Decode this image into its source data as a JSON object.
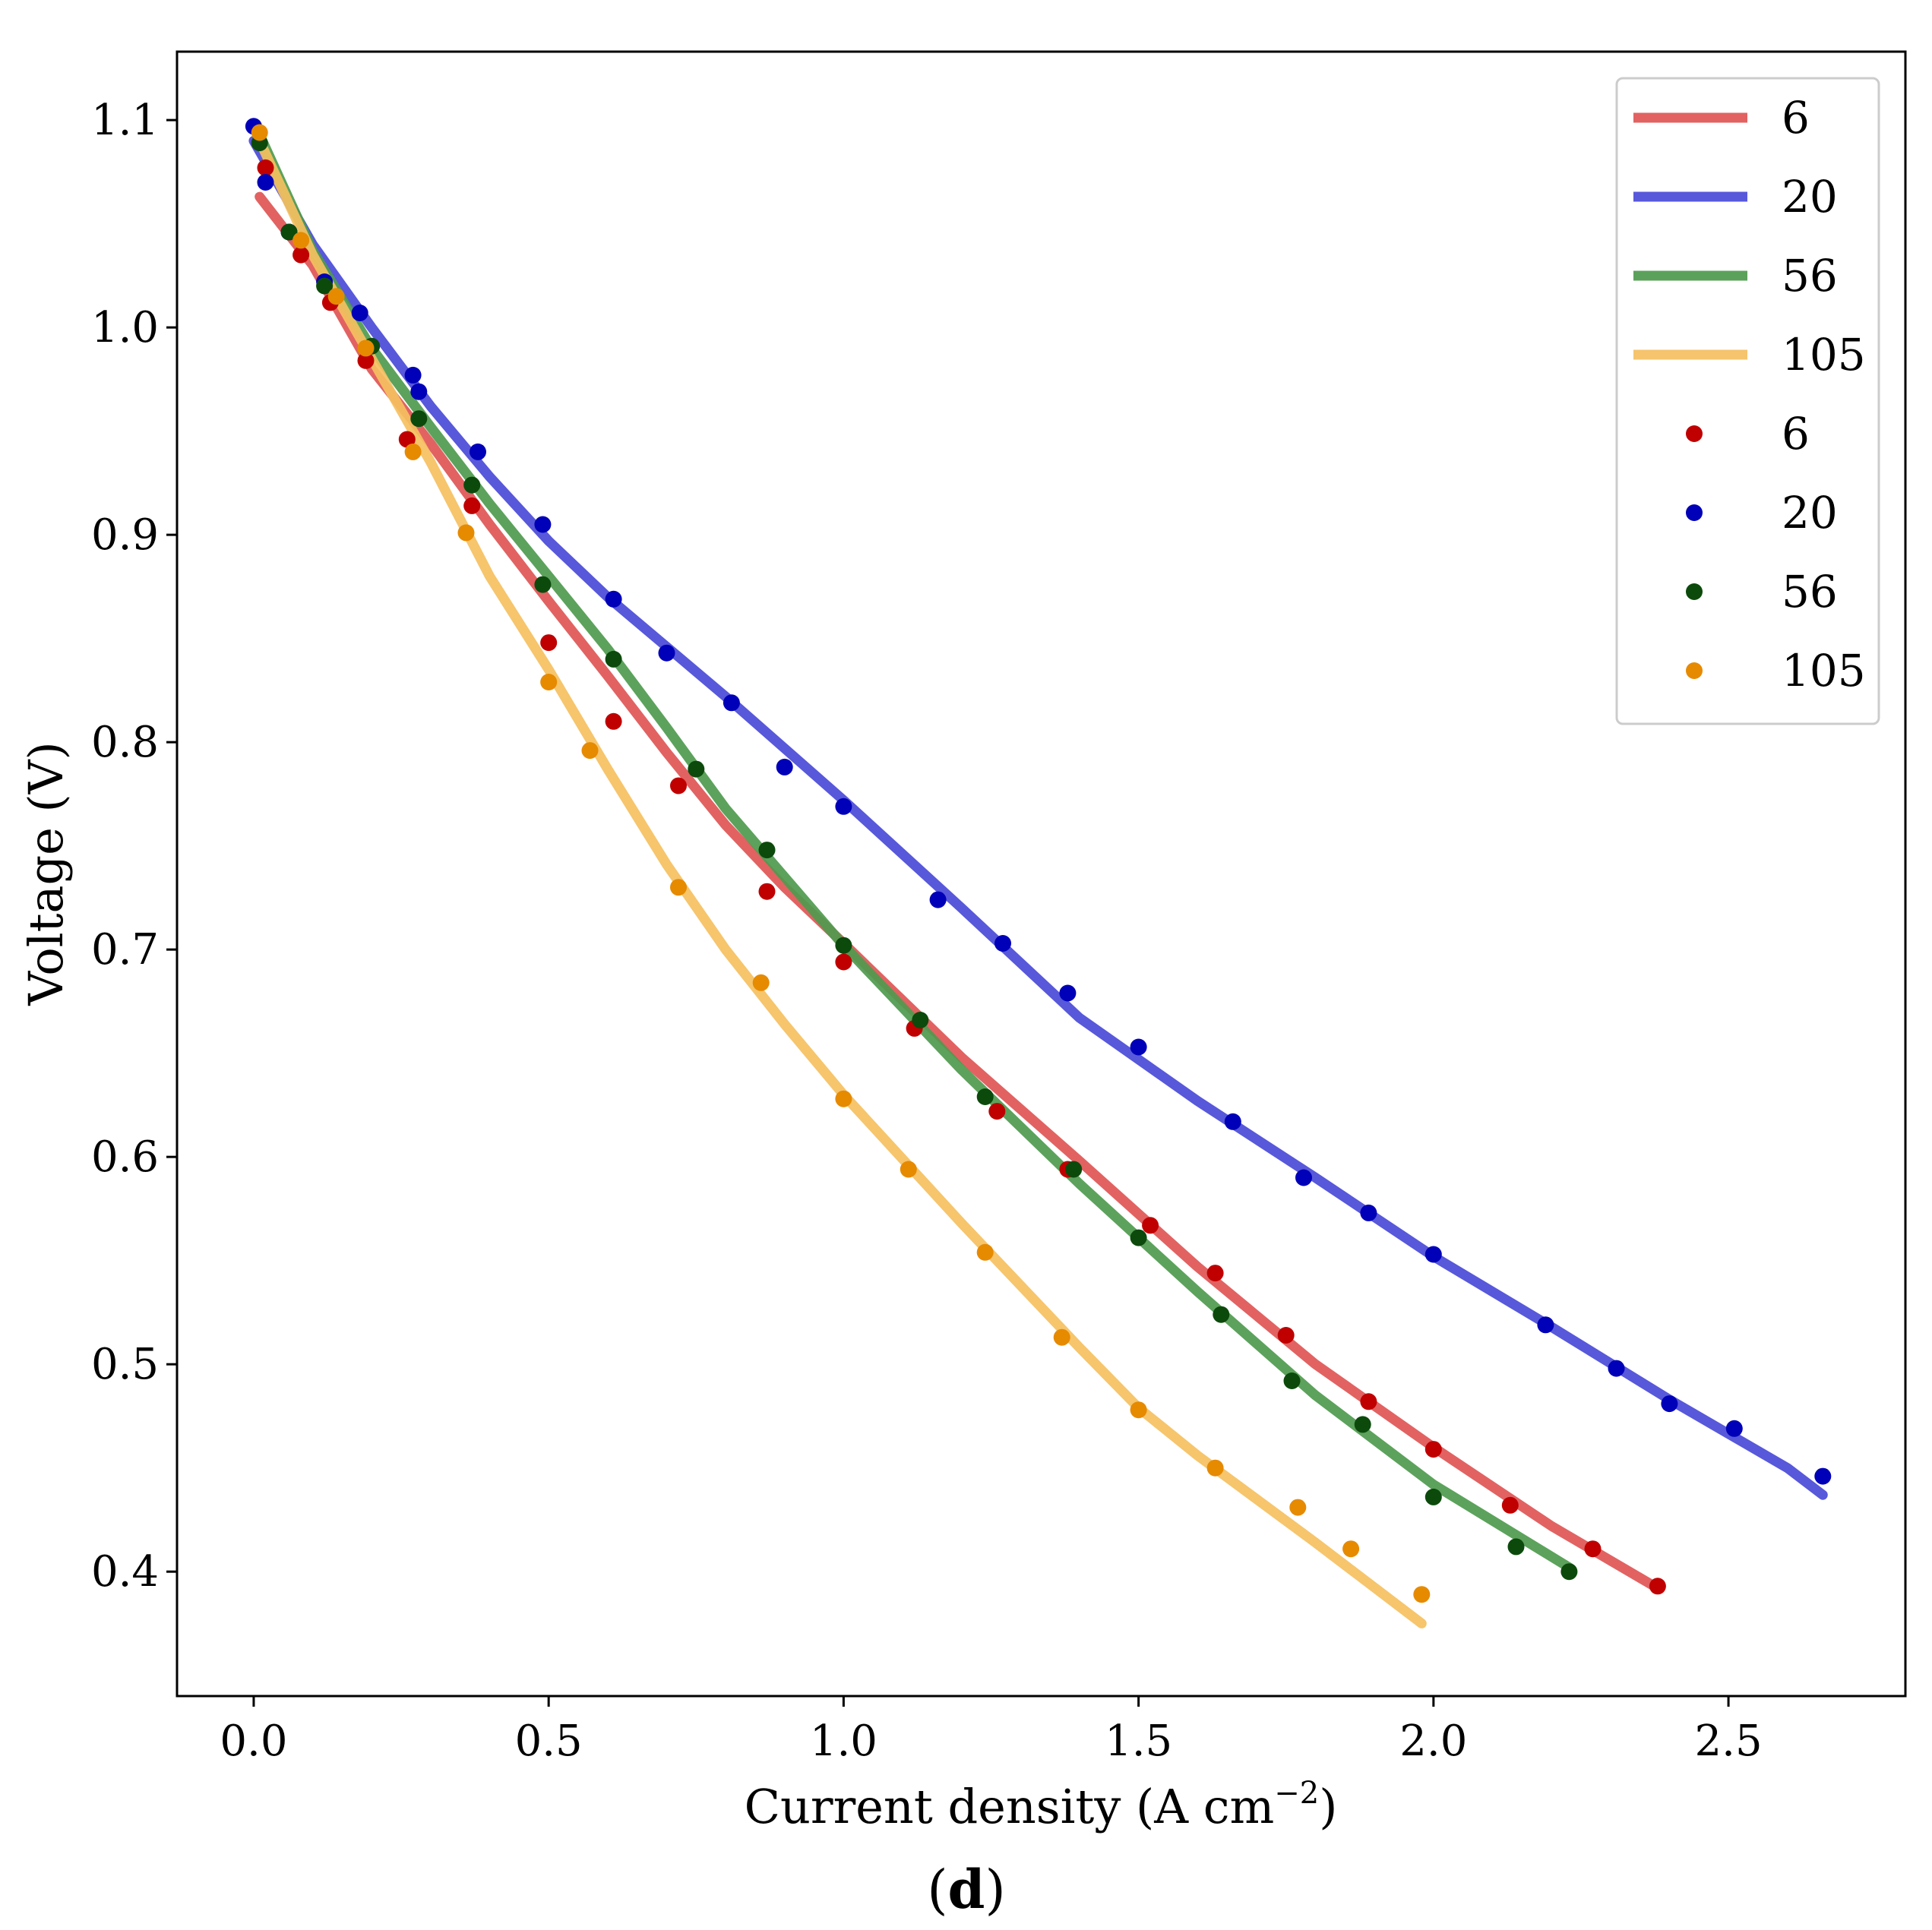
{
  "chart_data": {
    "type": "line",
    "title": "",
    "xlabel": "Current density (A cm",
    "xlabel_sup": "−2",
    "xlabel_close": ")",
    "ylabel": "Voltage (V)",
    "xlim": [
      -0.13,
      2.8
    ],
    "ylim": [
      0.34,
      1.133
    ],
    "x_ticks": [
      0.0,
      0.5,
      1.0,
      1.5,
      2.0,
      2.5
    ],
    "x_tick_labels": [
      "0.0",
      "0.5",
      "1.0",
      "1.5",
      "2.0",
      "2.5"
    ],
    "y_ticks": [
      0.4,
      0.5,
      0.6,
      0.7,
      0.8,
      0.9,
      1.0,
      1.1
    ],
    "y_tick_labels": [
      "0.4",
      "0.5",
      "0.6",
      "0.7",
      "0.8",
      "0.9",
      "1.0",
      "1.1"
    ],
    "legend_position": "top-right",
    "caption": {
      "open": "(",
      "bold": "d",
      "close": ")"
    },
    "series": [
      {
        "name": "6",
        "kind": "fit",
        "color": "#e05555",
        "x": [
          0.01,
          0.1,
          0.2,
          0.3,
          0.4,
          0.5,
          0.6,
          0.7,
          0.8,
          0.9,
          1.0,
          1.2,
          1.4,
          1.6,
          1.8,
          2.0,
          2.2,
          2.38
        ],
        "y": [
          1.063,
          1.03,
          0.98,
          0.944,
          0.905,
          0.868,
          0.832,
          0.795,
          0.76,
          0.73,
          0.703,
          0.648,
          0.598,
          0.547,
          0.5,
          0.46,
          0.422,
          0.392
        ]
      },
      {
        "name": "20",
        "kind": "fit",
        "color": "#4a4ad8",
        "x": [
          0.0,
          0.1,
          0.2,
          0.3,
          0.4,
          0.5,
          0.6,
          0.8,
          1.0,
          1.2,
          1.4,
          1.6,
          1.8,
          2.0,
          2.2,
          2.4,
          2.6,
          2.66
        ],
        "y": [
          1.09,
          1.04,
          1.0,
          0.962,
          0.928,
          0.897,
          0.87,
          0.822,
          0.772,
          0.72,
          0.667,
          0.627,
          0.59,
          0.552,
          0.518,
          0.483,
          0.45,
          0.437
        ]
      },
      {
        "name": "56",
        "kind": "fit",
        "color": "#4e9a4e",
        "x": [
          0.01,
          0.1,
          0.2,
          0.3,
          0.4,
          0.5,
          0.6,
          0.7,
          0.8,
          0.9,
          1.0,
          1.2,
          1.4,
          1.6,
          1.8,
          2.0,
          2.23
        ],
        "y": [
          1.093,
          1.037,
          0.99,
          0.952,
          0.915,
          0.88,
          0.845,
          0.807,
          0.768,
          0.735,
          0.702,
          0.642,
          0.587,
          0.535,
          0.485,
          0.442,
          0.402
        ]
      },
      {
        "name": "105",
        "kind": "fit",
        "color": "#f5c060",
        "x": [
          0.01,
          0.1,
          0.2,
          0.3,
          0.4,
          0.5,
          0.6,
          0.7,
          0.8,
          0.9,
          1.0,
          1.2,
          1.4,
          1.5,
          1.6,
          1.8,
          1.98
        ],
        "y": [
          1.09,
          1.035,
          0.985,
          0.935,
          0.88,
          0.835,
          0.787,
          0.741,
          0.7,
          0.664,
          0.63,
          0.568,
          0.508,
          0.479,
          0.456,
          0.414,
          0.375
        ]
      },
      {
        "name": "6",
        "kind": "data",
        "color": "#c00000",
        "x": [
          0.02,
          0.08,
          0.13,
          0.19,
          0.26,
          0.37,
          0.5,
          0.61,
          0.72,
          0.87,
          1.0,
          1.12,
          1.26,
          1.38,
          1.52,
          1.63,
          1.75,
          1.89,
          2.0,
          2.13,
          2.27,
          2.38
        ],
        "y": [
          1.077,
          1.035,
          1.012,
          0.984,
          0.946,
          0.914,
          0.848,
          0.81,
          0.779,
          0.728,
          0.694,
          0.662,
          0.622,
          0.594,
          0.567,
          0.544,
          0.514,
          0.482,
          0.459,
          0.432,
          0.411,
          0.393
        ]
      },
      {
        "name": "20",
        "kind": "data",
        "color": "#0000b8",
        "x": [
          0.0,
          0.02,
          0.06,
          0.12,
          0.18,
          0.27,
          0.28,
          0.38,
          0.49,
          0.61,
          0.7,
          0.81,
          0.9,
          1.0,
          1.16,
          1.27,
          1.38,
          1.5,
          1.66,
          1.78,
          1.89,
          2.0,
          2.19,
          2.31,
          2.4,
          2.51,
          2.66
        ],
        "y": [
          1.097,
          1.07,
          1.046,
          1.022,
          1.007,
          0.977,
          0.969,
          0.94,
          0.905,
          0.869,
          0.843,
          0.819,
          0.788,
          0.769,
          0.724,
          0.703,
          0.679,
          0.653,
          0.617,
          0.59,
          0.573,
          0.553,
          0.519,
          0.498,
          0.481,
          0.469,
          0.446
        ]
      },
      {
        "name": "56",
        "kind": "data",
        "color": "#0c4a0c",
        "x": [
          0.01,
          0.06,
          0.12,
          0.2,
          0.28,
          0.37,
          0.49,
          0.61,
          0.75,
          0.87,
          1.0,
          1.13,
          1.24,
          1.39,
          1.5,
          1.64,
          1.76,
          1.88,
          2.0,
          2.14,
          2.23
        ],
        "y": [
          1.089,
          1.046,
          1.02,
          0.991,
          0.956,
          0.924,
          0.876,
          0.84,
          0.787,
          0.748,
          0.702,
          0.666,
          0.629,
          0.594,
          0.561,
          0.524,
          0.492,
          0.471,
          0.436,
          0.412,
          0.4
        ]
      },
      {
        "name": "105",
        "kind": "data",
        "color": "#e68a00",
        "x": [
          0.01,
          0.08,
          0.14,
          0.19,
          0.27,
          0.36,
          0.5,
          0.57,
          0.72,
          0.86,
          1.0,
          1.11,
          1.24,
          1.37,
          1.5,
          1.63,
          1.77,
          1.86,
          1.98
        ],
        "y": [
          1.094,
          1.042,
          1.015,
          0.99,
          0.94,
          0.901,
          0.829,
          0.796,
          0.73,
          0.684,
          0.628,
          0.594,
          0.554,
          0.513,
          0.478,
          0.45,
          0.431,
          0.411,
          0.389
        ]
      }
    ]
  }
}
